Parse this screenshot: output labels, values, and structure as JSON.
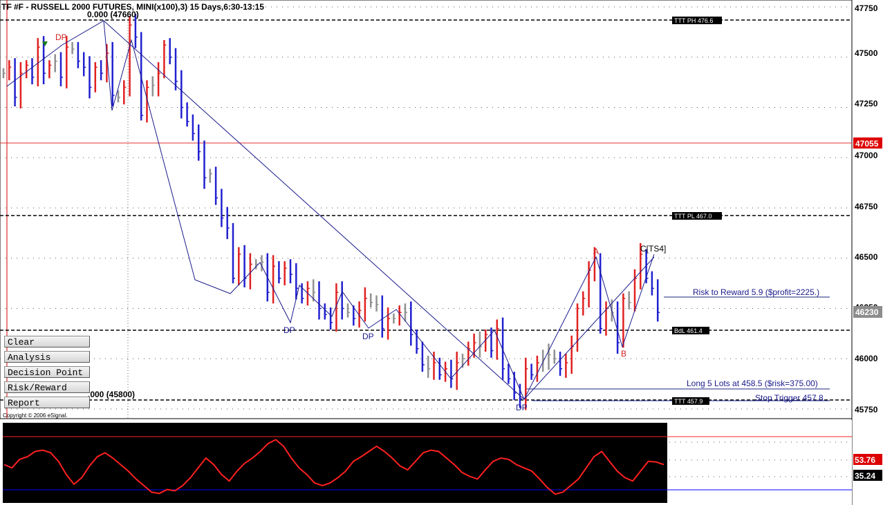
{
  "header": {
    "title": "TF #F - RUSSELL 2000 FUTURES, MINI(x100),3) 15 Days,6:30-13:15",
    "top_fib_label": "0.000 (47660)",
    "bottom_fib_label": ".000 (45800)",
    "copyright": "Copyright © 2006 eSignal."
  },
  "buttons": {
    "clear": "Clear",
    "analysis": "Analysis",
    "decision_point": "Decision Point",
    "risk_reward": "Risk/Reward",
    "report": "Report"
  },
  "price_axis": {
    "ticks": [
      "47750",
      "47500",
      "47250",
      "47000",
      "46750",
      "46500",
      "46250",
      "46000",
      "45750"
    ],
    "red_marker": "47055",
    "last_price": "46230",
    "colors": {
      "marker_bg": "#dd0000",
      "last_bg": "#8c8c8c"
    }
  },
  "levels": {
    "ttt_ph": "TTT PH 476.6",
    "ttt_pl": "TTT PL 467.0",
    "bdl": "BdL 461.4",
    "ttt_stop": "TTT 457.9"
  },
  "annotations": {
    "dp_top": "DP",
    "dp1": "DP",
    "dp2": "DP",
    "dp_bottom": "DP",
    "a": "A",
    "b": "B",
    "c": "C[TS4]",
    "risk_reward": "Risk to Reward 5.9 ($profit=2225.)",
    "long": "Long 5 Lots at 458.5 ($risk=375.00)",
    "stop": "Stop Trigger 457.8"
  },
  "oscillator": {
    "value_red": "53.76",
    "value_black": "35.24",
    "colors": {
      "line": "#ff2020",
      "bg": "#000000",
      "upper": "#ff2020",
      "lower": "#0000ff"
    }
  },
  "chart_data": {
    "type": "bar",
    "ylim": [
      45700,
      47800
    ],
    "price_series": [
      47420,
      47450,
      47300,
      47420,
      47460,
      47400,
      47550,
      47420,
      47460,
      47480,
      47400,
      47550,
      47540,
      47480,
      47450,
      47350,
      47450,
      47420,
      47520,
      47310,
      47300,
      47350,
      47660,
      47600,
      47210,
      47350,
      47360,
      47420,
      47560,
      47500,
      47380,
      47250,
      47180,
      47120,
      47030,
      46900,
      46920,
      46800,
      46700,
      46650,
      46400,
      46520,
      46400,
      46470,
      46470,
      46480,
      46330,
      46460,
      46400,
      46450,
      46420,
      46350,
      46300,
      46350,
      46330,
      46250,
      46220,
      46180,
      46330,
      46250,
      46230,
      46200,
      46240,
      46300,
      46280,
      46270,
      46150,
      46200,
      46200,
      46230,
      46230,
      46120,
      46050,
      45970,
      45950,
      45980,
      45920,
      45950,
      45900,
      45980,
      46000,
      46050,
      46080,
      46060,
      46120,
      46040,
      46150,
      45950,
      45900,
      45830,
      45800,
      45950,
      45920,
      45980,
      46000,
      46020,
      46000,
      45950,
      45980,
      46060,
      46250,
      46300,
      46440,
      46500,
      46150,
      46250,
      46230,
      46080,
      46300,
      46280,
      46400,
      46520,
      46400,
      46350,
      46230
    ],
    "bar_colors_note": "red=up,blue=down,gray=neutral",
    "zigzag": [
      {
        "label": "DP",
        "price": 47550
      },
      {
        "label": "",
        "price": 47660
      },
      {
        "label": "",
        "price": 47210
      },
      {
        "label": "",
        "price": 47560
      },
      {
        "label": "",
        "price": 46400
      },
      {
        "label": "DP",
        "price": 46180
      },
      {
        "label": "",
        "price": 46350
      },
      {
        "label": "DP",
        "price": 46150
      },
      {
        "label": "",
        "price": 45900
      },
      {
        "label": "",
        "price": 46150
      },
      {
        "label": "DP",
        "price": 45800
      },
      {
        "label": "A",
        "price": 46500
      },
      {
        "label": "B",
        "price": 46080
      },
      {
        "label": "C[TS4]",
        "price": 46510
      }
    ],
    "oscillator_series": [
      50,
      45,
      58,
      62,
      70,
      72,
      68,
      55,
      35,
      20,
      30,
      48,
      62,
      68,
      60,
      50,
      40,
      28,
      18,
      8,
      6,
      12,
      10,
      18,
      30,
      45,
      60,
      50,
      35,
      25,
      40,
      52,
      60,
      70,
      82,
      88,
      78,
      60,
      45,
      35,
      22,
      18,
      22,
      30,
      40,
      55,
      62,
      70,
      78,
      70,
      60,
      48,
      42,
      55,
      68,
      72,
      70,
      60,
      50,
      38,
      32,
      28,
      42,
      55,
      60,
      58,
      50,
      45,
      40,
      28,
      15,
      5,
      8,
      18,
      28,
      45,
      62,
      70,
      55,
      40,
      30,
      25,
      40,
      55,
      54,
      50
    ]
  }
}
